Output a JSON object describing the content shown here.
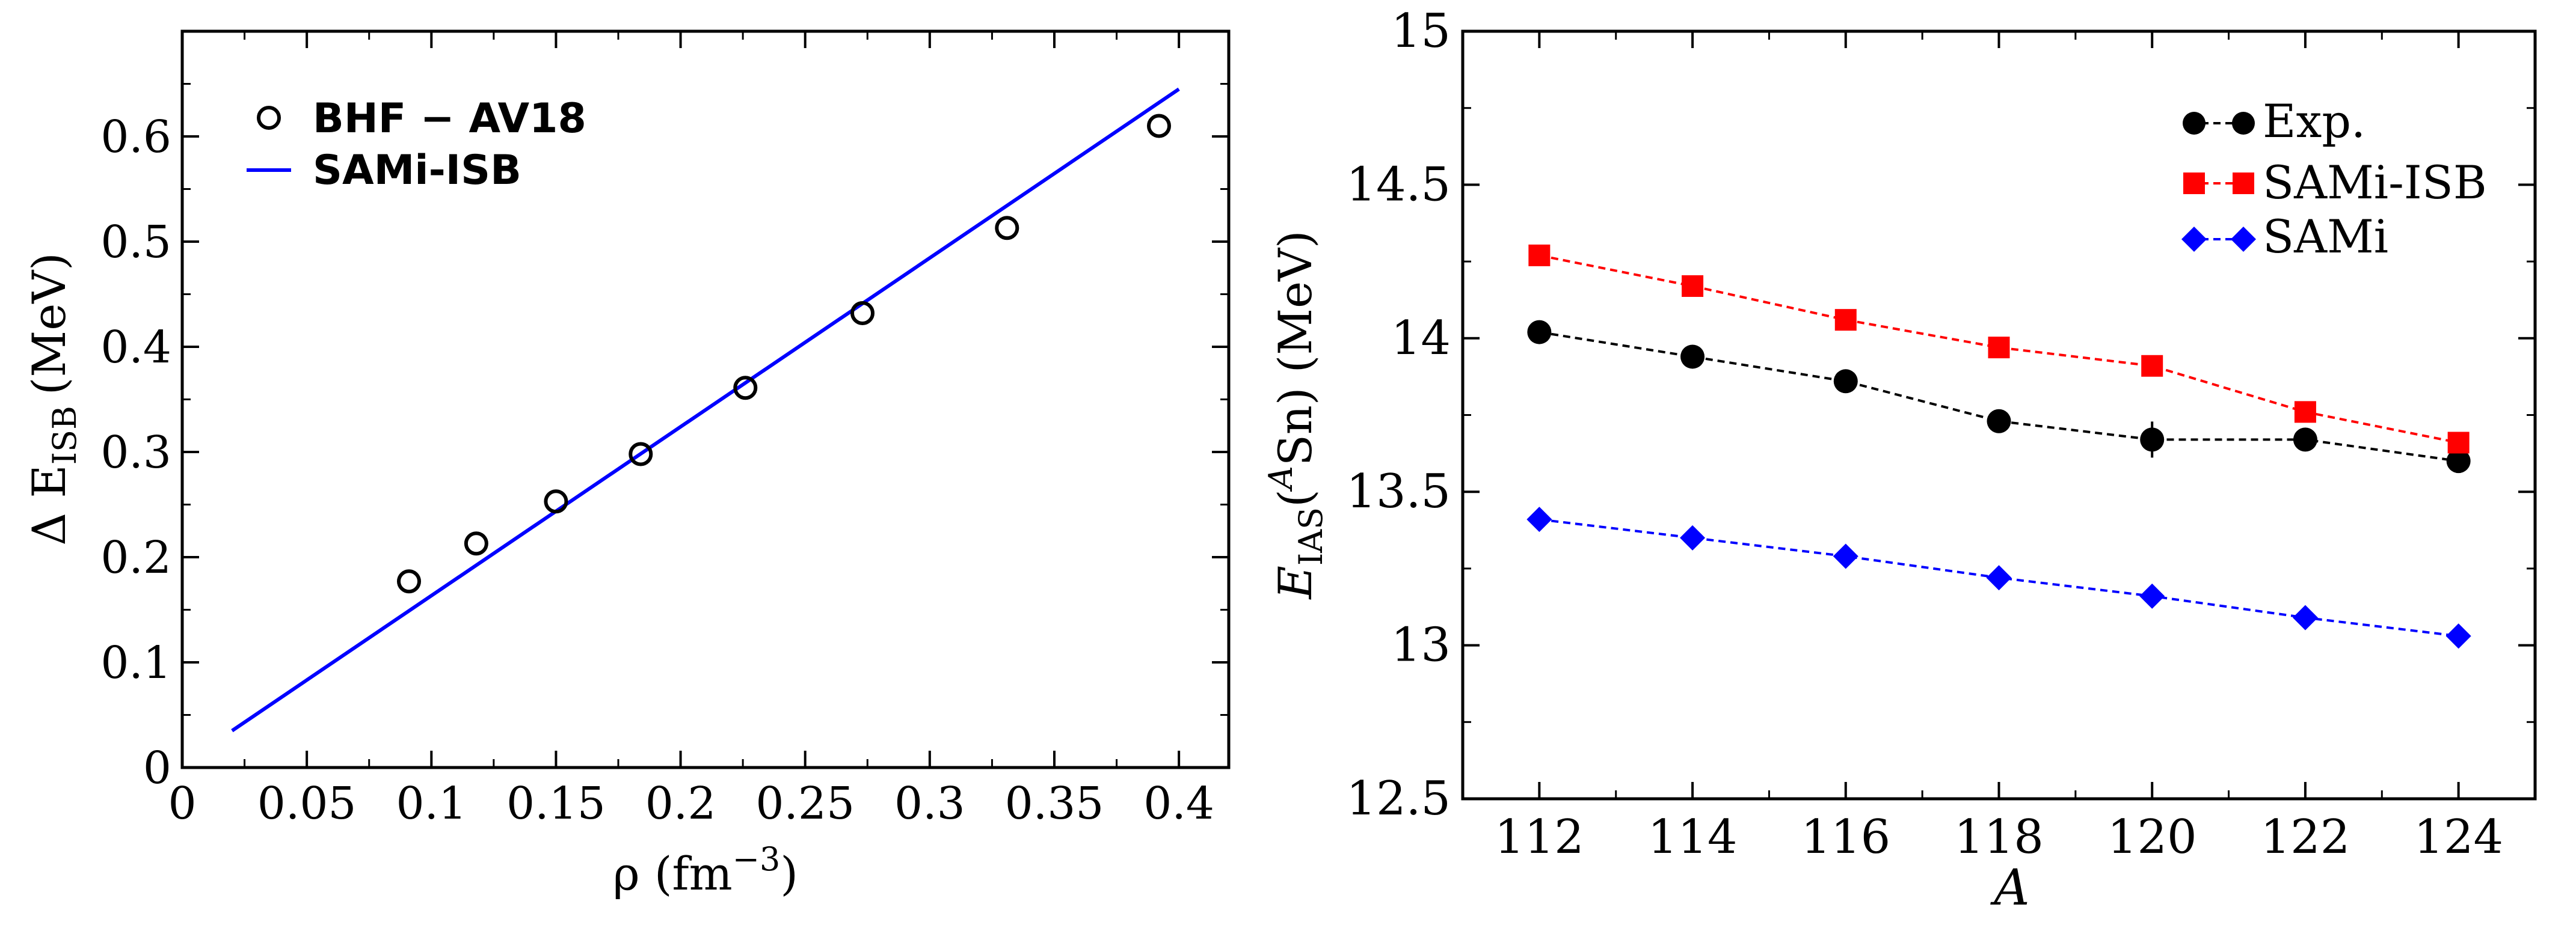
{
  "chart_data": [
    {
      "type": "scatter",
      "xlabel": "ρ (fm",
      "xlabel_exp": "−3",
      "xlabel_close": ")",
      "ylabel": "Δ E",
      "ylabel_sub": "ISB",
      "ylabel_unit": "(MeV)",
      "xlim": [
        0,
        0.42
      ],
      "ylim": [
        0,
        0.7
      ],
      "xticks": [
        0,
        0.05,
        0.1,
        0.15,
        0.2,
        0.25,
        0.3,
        0.35,
        0.4
      ],
      "xtick_labels": [
        "0",
        "0.05",
        "0.1",
        "0.15",
        "0.2",
        "0.25",
        "0.3",
        "0.35",
        "0.4"
      ],
      "yticks": [
        0,
        0.1,
        0.2,
        0.3,
        0.4,
        0.5,
        0.6
      ],
      "ytick_labels": [
        "0",
        "0.1",
        "0.2",
        "0.3",
        "0.4",
        "0.5",
        "0.6"
      ],
      "legend_position": "top-left",
      "series": [
        {
          "name": "BHF − AV18",
          "style": "open-circle",
          "color": "#000000",
          "x": [
            0.091,
            0.118,
            0.15,
            0.184,
            0.226,
            0.273,
            0.331,
            0.392
          ],
          "y": [
            0.177,
            0.213,
            0.253,
            0.298,
            0.361,
            0.432,
            0.513,
            0.61
          ]
        },
        {
          "name": "SAMi-ISB",
          "style": "line",
          "color": "#0000ff",
          "x": [
            0.02,
            0.4
          ],
          "y": [
            0.035,
            0.645
          ]
        }
      ]
    },
    {
      "type": "line",
      "xlabel": "A",
      "ylabel": "E",
      "ylabel_sub": "IAS",
      "ylabel_rest": "(",
      "ylabel_sup": "A",
      "ylabel_end": "Sn) (MeV)",
      "xlim": [
        111,
        125
      ],
      "ylim": [
        12.5,
        15
      ],
      "xticks": [
        112,
        114,
        116,
        118,
        120,
        122,
        124
      ],
      "xtick_labels": [
        "112",
        "114",
        "116",
        "118",
        "120",
        "122",
        "124"
      ],
      "yticks": [
        12.5,
        13,
        13.5,
        14,
        14.5,
        15
      ],
      "ytick_labels": [
        "12.5",
        "13",
        "13.5",
        "14",
        "14.5",
        "15"
      ],
      "legend_position": "top-right",
      "series": [
        {
          "name": "Exp.",
          "marker": "circle",
          "color": "#000000",
          "x": [
            112,
            114,
            116,
            118,
            120,
            122,
            124
          ],
          "y": [
            14.02,
            13.94,
            13.86,
            13.73,
            13.67,
            13.67,
            13.6
          ]
        },
        {
          "name": "SAMi-ISB",
          "marker": "square",
          "color": "#ff0000",
          "x": [
            112,
            114,
            116,
            118,
            120,
            122,
            124
          ],
          "y": [
            14.27,
            14.17,
            14.06,
            13.97,
            13.91,
            13.76,
            13.66
          ]
        },
        {
          "name": "SAMi",
          "marker": "diamond",
          "color": "#0000ff",
          "x": [
            112,
            114,
            116,
            118,
            120,
            122,
            124
          ],
          "y": [
            13.41,
            13.35,
            13.29,
            13.22,
            13.16,
            13.09,
            13.03
          ]
        }
      ]
    }
  ]
}
